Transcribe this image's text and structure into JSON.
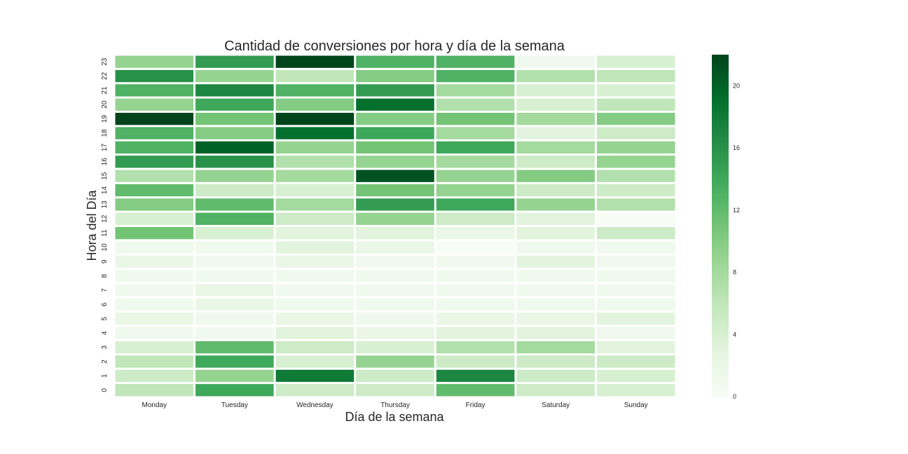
{
  "chart_data": {
    "type": "heatmap",
    "title": "Cantidad de conversiones por hora y día de la semana",
    "xlabel": "Día de la semana",
    "ylabel": "Hora del Día",
    "x_categories": [
      "Monday",
      "Tuesday",
      "Wednesday",
      "Thursday",
      "Friday",
      "Saturday",
      "Sunday"
    ],
    "y_categories": [
      "0",
      "1",
      "2",
      "3",
      "4",
      "5",
      "6",
      "7",
      "8",
      "9",
      "10",
      "11",
      "12",
      "13",
      "14",
      "15",
      "16",
      "17",
      "18",
      "19",
      "20",
      "21",
      "22",
      "23"
    ],
    "values": [
      [
        6,
        14,
        5,
        5,
        12,
        5,
        4
      ],
      [
        5,
        9,
        18,
        5,
        17,
        5,
        4
      ],
      [
        6,
        14,
        4,
        9,
        5,
        5,
        5
      ],
      [
        4,
        12,
        5,
        4,
        7,
        8,
        3
      ],
      [
        1,
        1,
        3,
        2,
        3,
        3,
        1
      ],
      [
        2,
        1,
        2,
        1,
        2,
        2,
        3
      ],
      [
        1,
        2,
        1,
        1,
        1,
        1,
        1
      ],
      [
        1,
        2,
        1,
        1,
        1,
        1,
        1
      ],
      [
        1,
        1,
        1,
        1,
        1,
        1,
        1
      ],
      [
        2,
        1,
        2,
        1,
        1,
        3,
        1
      ],
      [
        1,
        1,
        3,
        2,
        0,
        1,
        1
      ],
      [
        11,
        4,
        3,
        3,
        2,
        3,
        5
      ],
      [
        4,
        13,
        5,
        9,
        5,
        3,
        0
      ],
      [
        10,
        12,
        8,
        15,
        14,
        9,
        7
      ],
      [
        12,
        5,
        4,
        11,
        9,
        5,
        5
      ],
      [
        7,
        9,
        8,
        21,
        9,
        10,
        7
      ],
      [
        15,
        16,
        7,
        9,
        8,
        5,
        9
      ],
      [
        13,
        20,
        9,
        11,
        14,
        8,
        9
      ],
      [
        13,
        10,
        19,
        14,
        8,
        3,
        5
      ],
      [
        22,
        11,
        22,
        10,
        11,
        8,
        10
      ],
      [
        9,
        14,
        10,
        19,
        7,
        4,
        6
      ],
      [
        13,
        17,
        13,
        15,
        8,
        4,
        4
      ],
      [
        16,
        9,
        6,
        10,
        13,
        7,
        6
      ],
      [
        9,
        15,
        22,
        13,
        13,
        1,
        4
      ]
    ],
    "vmin": 0,
    "vmax": 22,
    "colormap": "Greens",
    "colormap_stops": [
      "#f7fcf5",
      "#e5f5e0",
      "#c7e9c0",
      "#a1d99b",
      "#74c476",
      "#41ab5d",
      "#238b45",
      "#006d2c",
      "#00441b"
    ],
    "colorbar_ticks": [
      0,
      4,
      8,
      12,
      16,
      20
    ],
    "grid": false,
    "cell_separator_color": "#ffffff"
  }
}
